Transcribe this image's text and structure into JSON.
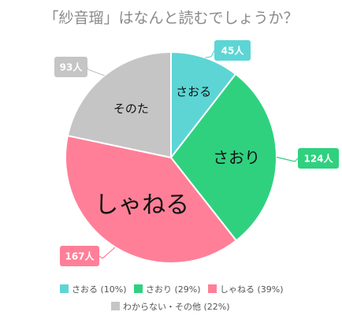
{
  "chart_data": {
    "type": "pie",
    "title": "「紗音瑠」はなんと読むでしょうか？",
    "slices": [
      {
        "label": "さおる",
        "value": 45,
        "value_label": "45人",
        "legend": "さおる (10%)",
        "color": "#5dd5d5"
      },
      {
        "label": "さおり",
        "value": 124,
        "value_label": "124人",
        "legend": "さおり (29%)",
        "color": "#2fd17f"
      },
      {
        "label": "しゃねる",
        "value": 167,
        "value_label": "167人",
        "legend": "しゃねる (39%)",
        "color": "#ff7f98"
      },
      {
        "label": "そのた",
        "value": 93,
        "value_label": "93人",
        "legend": "わからない・その他 (22%)",
        "color": "#c5c5c5"
      }
    ]
  }
}
